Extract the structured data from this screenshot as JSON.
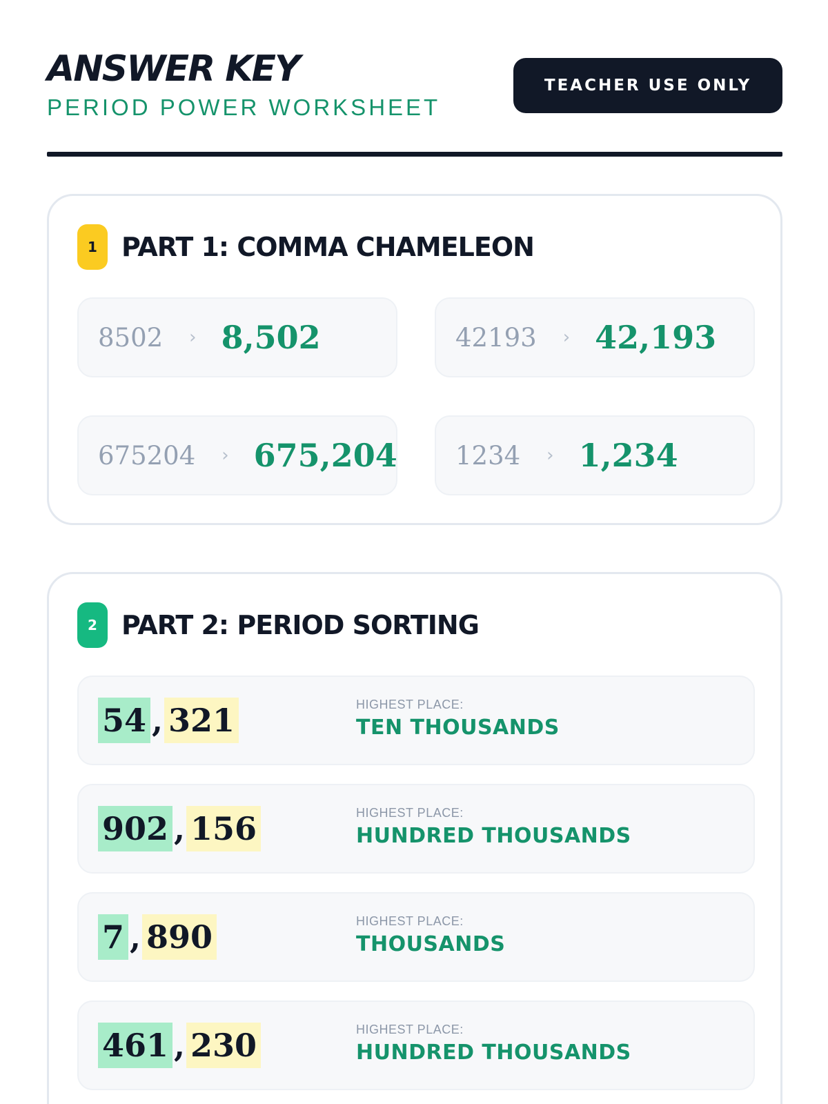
{
  "header": {
    "title": "ANSWER KEY",
    "subtitle": "PERIOD POWER WORKSHEET",
    "badge": "TEACHER USE ONLY"
  },
  "part1": {
    "number": "1",
    "title": "PART 1: COMMA CHAMELEON",
    "accent_color": "#fbcb21",
    "items": [
      {
        "raw": "8502",
        "answer": "8,502"
      },
      {
        "raw": "42193",
        "answer": "42,193"
      },
      {
        "raw": "675204",
        "answer": "675,204"
      },
      {
        "raw": "1234",
        "answer": "1,234"
      }
    ]
  },
  "part2": {
    "number": "2",
    "title": "PART 2: PERIOD SORTING",
    "accent_color": "#16b981",
    "label": "HIGHEST PLACE:",
    "rows": [
      {
        "thousands": "54",
        "ones": "321",
        "place": "TEN THOUSANDS"
      },
      {
        "thousands": "902",
        "ones": "156",
        "place": "HUNDRED THOUSANDS"
      },
      {
        "thousands": "7",
        "ones": "890",
        "place": "THOUSANDS"
      },
      {
        "thousands": "461",
        "ones": "230",
        "place": "HUNDRED THOUSANDS"
      }
    ]
  },
  "colors": {
    "answer_green": "#15936b",
    "dark": "#111827",
    "thousands_highlight": "#a8ecc9",
    "ones_highlight": "#fdf6c2"
  }
}
